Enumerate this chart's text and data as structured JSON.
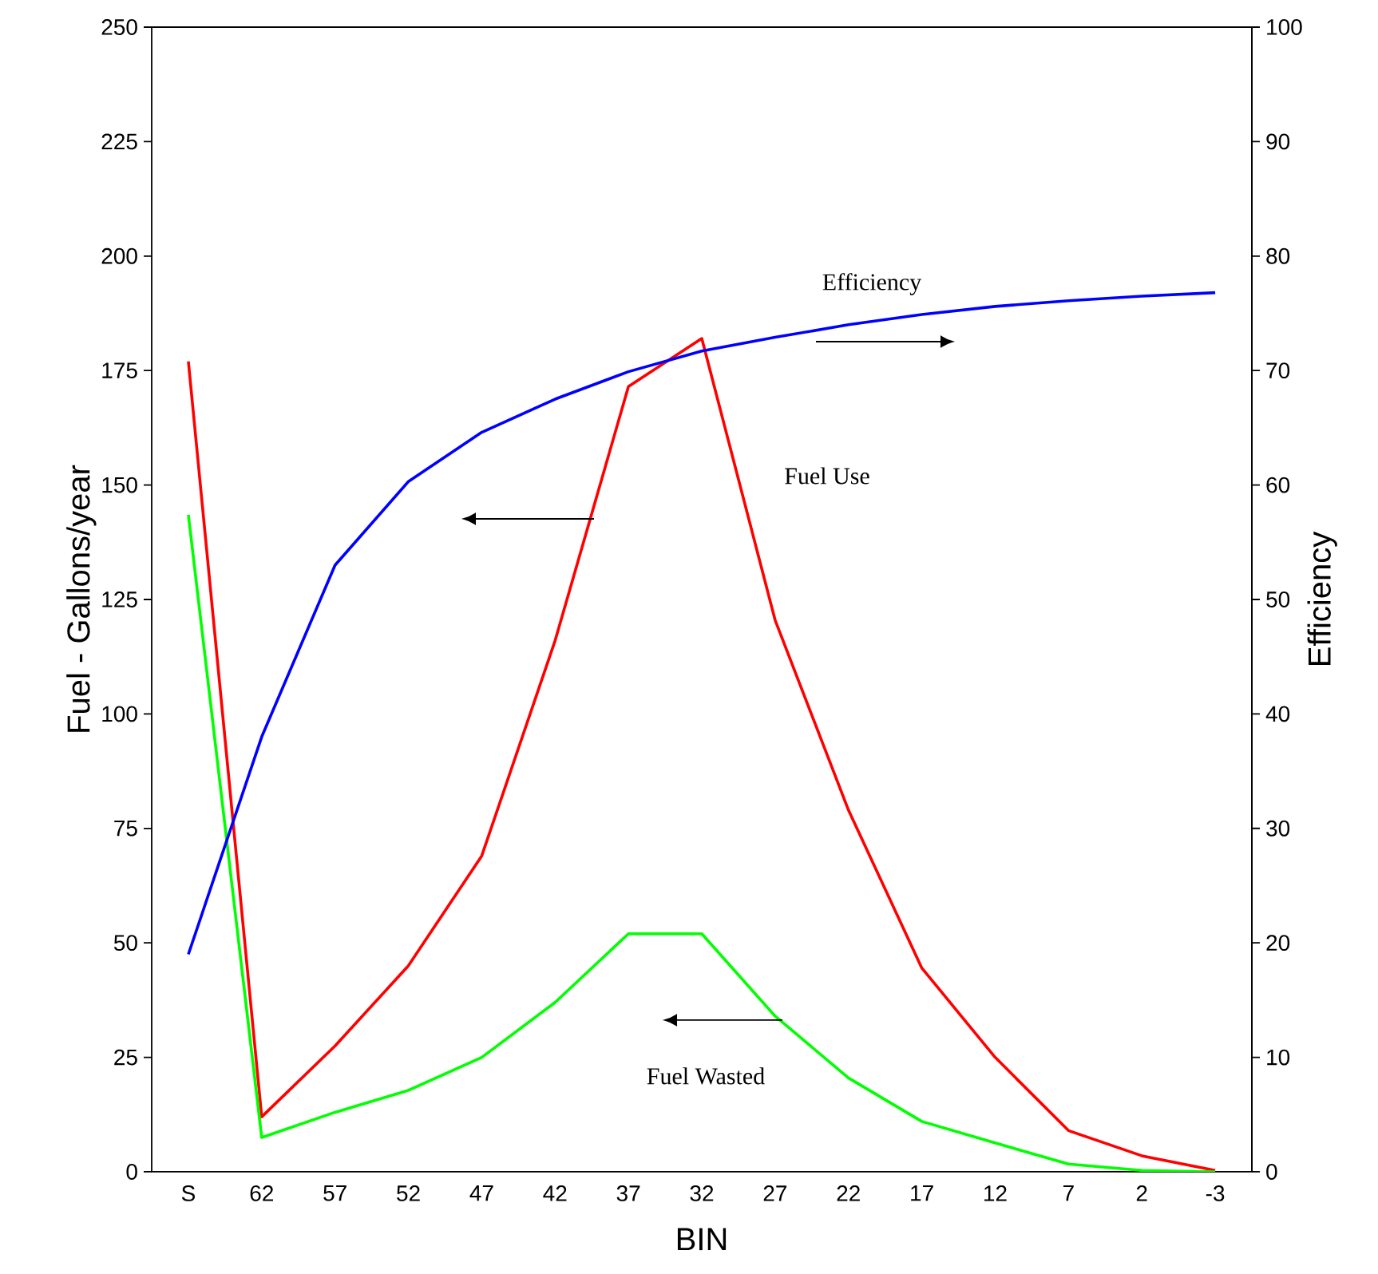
{
  "chart_data": {
    "type": "line",
    "xlabel": "BIN",
    "ylabel": "Fuel - Gallons/year",
    "y2label": "Efficiency",
    "categories": [
      "S",
      "62",
      "57",
      "52",
      "47",
      "42",
      "37",
      "32",
      "27",
      "22",
      "17",
      "12",
      "7",
      "2",
      "-3"
    ],
    "series": [
      {
        "name": "Fuel Use",
        "color": "#ff0000",
        "values": [
          177,
          12,
          27.5,
          45,
          69,
          116,
          171.5,
          182,
          120.5,
          79,
          44.5,
          25,
          9,
          3.5,
          0.3
        ]
      },
      {
        "name": "Fuel Wasted",
        "color": "#00ff00",
        "values": [
          143.5,
          7.5,
          13,
          17.8,
          25,
          37,
          52,
          52,
          34,
          20.5,
          11,
          6.3,
          1.7,
          0.3,
          0
        ]
      },
      {
        "name": "Efficiency",
        "color": "#0000ff",
        "axis": "y2",
        "values": [
          19,
          38,
          53,
          60.3,
          64.6,
          67.5,
          69.9,
          71.7,
          72.9,
          74,
          74.9,
          75.6,
          76.1,
          76.5,
          76.8
        ]
      }
    ],
    "ylim": [
      0,
      250
    ],
    "yticks": [
      0,
      25,
      50,
      75,
      100,
      125,
      150,
      175,
      200,
      225,
      250
    ],
    "y2lim": [
      0,
      100
    ],
    "y2ticks": [
      0,
      10,
      20,
      30,
      40,
      50,
      60,
      70,
      80,
      90,
      100
    ]
  }
}
